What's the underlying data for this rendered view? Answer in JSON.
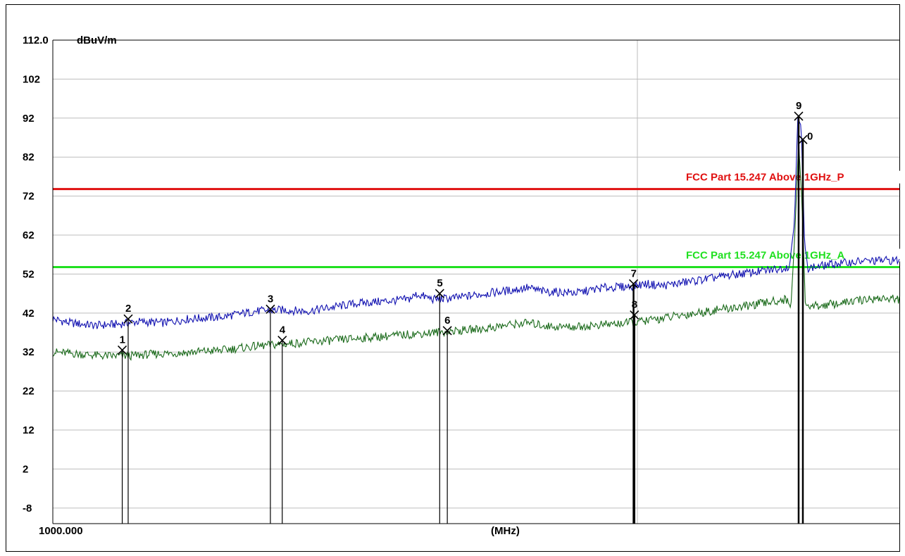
{
  "chart_data": {
    "type": "line",
    "unit": "dBuV/m",
    "ymax_label": "112.0",
    "yticks": [
      "102",
      "92",
      "82",
      "72",
      "62",
      "52",
      "42",
      "32",
      "22",
      "12",
      "2",
      "-8"
    ],
    "x_start_label": "1000.000",
    "xlabel": "(MHz)",
    "ylim": [
      -12,
      112
    ],
    "grid": true,
    "limits": [
      {
        "label": "FCC Part 15.247 Above 1GHz_P",
        "value": 73.8,
        "color": "#e01010"
      },
      {
        "label": "FCC Part 15.247 Above 1GHz_A",
        "value": 53.8,
        "color": "#20e020"
      }
    ],
    "series": [
      {
        "color": "#1010b0",
        "values": [
          [
            0,
            40.5
          ],
          [
            0.02,
            39.5
          ],
          [
            0.05,
            38.8
          ],
          [
            0.08,
            39.2
          ],
          [
            0.1,
            39.8
          ],
          [
            0.13,
            39.5
          ],
          [
            0.16,
            40.5
          ],
          [
            0.2,
            41
          ],
          [
            0.24,
            42.5
          ],
          [
            0.27,
            42.8
          ],
          [
            0.3,
            42.5
          ],
          [
            0.33,
            43.5
          ],
          [
            0.36,
            44.5
          ],
          [
            0.39,
            45
          ],
          [
            0.42,
            45.5
          ],
          [
            0.43,
            46.8
          ],
          [
            0.45,
            45.5
          ],
          [
            0.48,
            46
          ],
          [
            0.51,
            47
          ],
          [
            0.54,
            47.8
          ],
          [
            0.56,
            48.5
          ],
          [
            0.58,
            47.5
          ],
          [
            0.62,
            47.2
          ],
          [
            0.65,
            48.5
          ],
          [
            0.68,
            48.8
          ],
          [
            0.7,
            49.5
          ],
          [
            0.72,
            49
          ],
          [
            0.75,
            50
          ],
          [
            0.78,
            51
          ],
          [
            0.81,
            52
          ],
          [
            0.84,
            52.8
          ],
          [
            0.86,
            53.5
          ],
          [
            0.87,
            54
          ],
          [
            0.876,
            65
          ],
          [
            0.88,
            92
          ],
          [
            0.884,
            90
          ],
          [
            0.888,
            60
          ],
          [
            0.892,
            53.5
          ],
          [
            0.92,
            54.5
          ],
          [
            0.95,
            55.2
          ],
          [
            0.98,
            55.5
          ],
          [
            1,
            55.5
          ]
        ]
      },
      {
        "color": "#1a6a1a",
        "values": [
          [
            0,
            32
          ],
          [
            0.03,
            31.5
          ],
          [
            0.06,
            31
          ],
          [
            0.09,
            31
          ],
          [
            0.12,
            31.5
          ],
          [
            0.15,
            31.8
          ],
          [
            0.2,
            32.5
          ],
          [
            0.24,
            33.5
          ],
          [
            0.27,
            34
          ],
          [
            0.3,
            34.5
          ],
          [
            0.33,
            35
          ],
          [
            0.36,
            35.5
          ],
          [
            0.39,
            36
          ],
          [
            0.42,
            36.5
          ],
          [
            0.45,
            37
          ],
          [
            0.48,
            37.5
          ],
          [
            0.51,
            38
          ],
          [
            0.54,
            39
          ],
          [
            0.56,
            39.5
          ],
          [
            0.59,
            38.5
          ],
          [
            0.62,
            38.5
          ],
          [
            0.65,
            39
          ],
          [
            0.68,
            39.5
          ],
          [
            0.7,
            40
          ],
          [
            0.73,
            41
          ],
          [
            0.76,
            42
          ],
          [
            0.79,
            43
          ],
          [
            0.82,
            43.8
          ],
          [
            0.85,
            45
          ],
          [
            0.866,
            45.5
          ],
          [
            0.872,
            44
          ],
          [
            0.876,
            60
          ],
          [
            0.881,
            86
          ],
          [
            0.885,
            70
          ],
          [
            0.889,
            44
          ],
          [
            0.9,
            43.8
          ],
          [
            0.93,
            44.5
          ],
          [
            0.96,
            45.5
          ],
          [
            0.98,
            45.8
          ],
          [
            1,
            45.5
          ]
        ]
      }
    ],
    "markers": [
      {
        "label": "1",
        "x": 0.082,
        "y": 32.5
      },
      {
        "label": "2",
        "x": 0.089,
        "y": 40.5
      },
      {
        "label": "3",
        "x": 0.257,
        "y": 43
      },
      {
        "label": "4",
        "x": 0.271,
        "y": 35
      },
      {
        "label": "5",
        "x": 0.457,
        "y": 47
      },
      {
        "label": "6",
        "x": 0.466,
        "y": 37.5
      },
      {
        "label": "7",
        "x": 0.686,
        "y": 49.5
      },
      {
        "label": "8",
        "x": 0.687,
        "y": 41.5
      },
      {
        "label": "9",
        "x": 0.881,
        "y": 92.5
      },
      {
        "label": "0",
        "x": 0.886,
        "y": 86.5
      }
    ]
  }
}
